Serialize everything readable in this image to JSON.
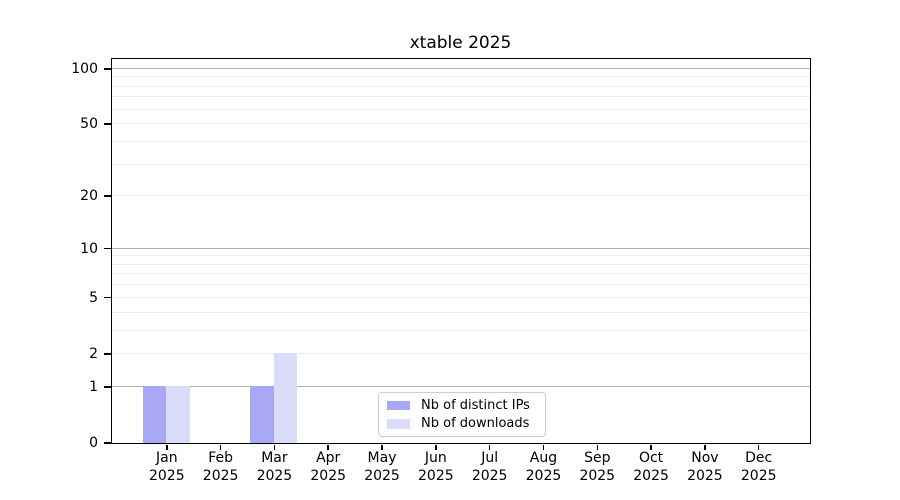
{
  "chart_data": {
    "type": "bar",
    "title": "xtable 2025",
    "x_categories": [
      "Jan",
      "Feb",
      "Mar",
      "Apr",
      "May",
      "Jun",
      "Jul",
      "Aug",
      "Sep",
      "Oct",
      "Nov",
      "Dec"
    ],
    "x_year_label": "2025",
    "series": [
      {
        "name": "Nb of distinct IPs",
        "color": "#a8a8f5",
        "values": [
          1,
          0,
          1,
          0,
          0,
          0,
          0,
          0,
          0,
          0,
          0,
          0
        ]
      },
      {
        "name": "Nb of downloads",
        "color": "#dbdbfa",
        "values": [
          1,
          0,
          2,
          0,
          0,
          0,
          0,
          0,
          0,
          0,
          0,
          0
        ]
      }
    ],
    "y_scale": "log1p",
    "y_axis_max": 113,
    "y_tick_labels": [
      0,
      1,
      2,
      5,
      10,
      20,
      50,
      100
    ],
    "y_major_gridlines": [
      1,
      10,
      100
    ],
    "y_minor_gridlines": [
      2,
      3,
      4,
      5,
      6,
      7,
      8,
      9,
      20,
      30,
      40,
      50,
      60,
      70,
      80,
      90
    ],
    "legend_position": "lower center",
    "grid": true,
    "xlabel": "",
    "ylabel": ""
  },
  "colors": {
    "background": "#ffffff",
    "axis": "#000000",
    "major_grid": "#b0b0b0",
    "minor_grid": "#ebebeb",
    "legend_border": "#cccccc",
    "text": "#000000"
  }
}
